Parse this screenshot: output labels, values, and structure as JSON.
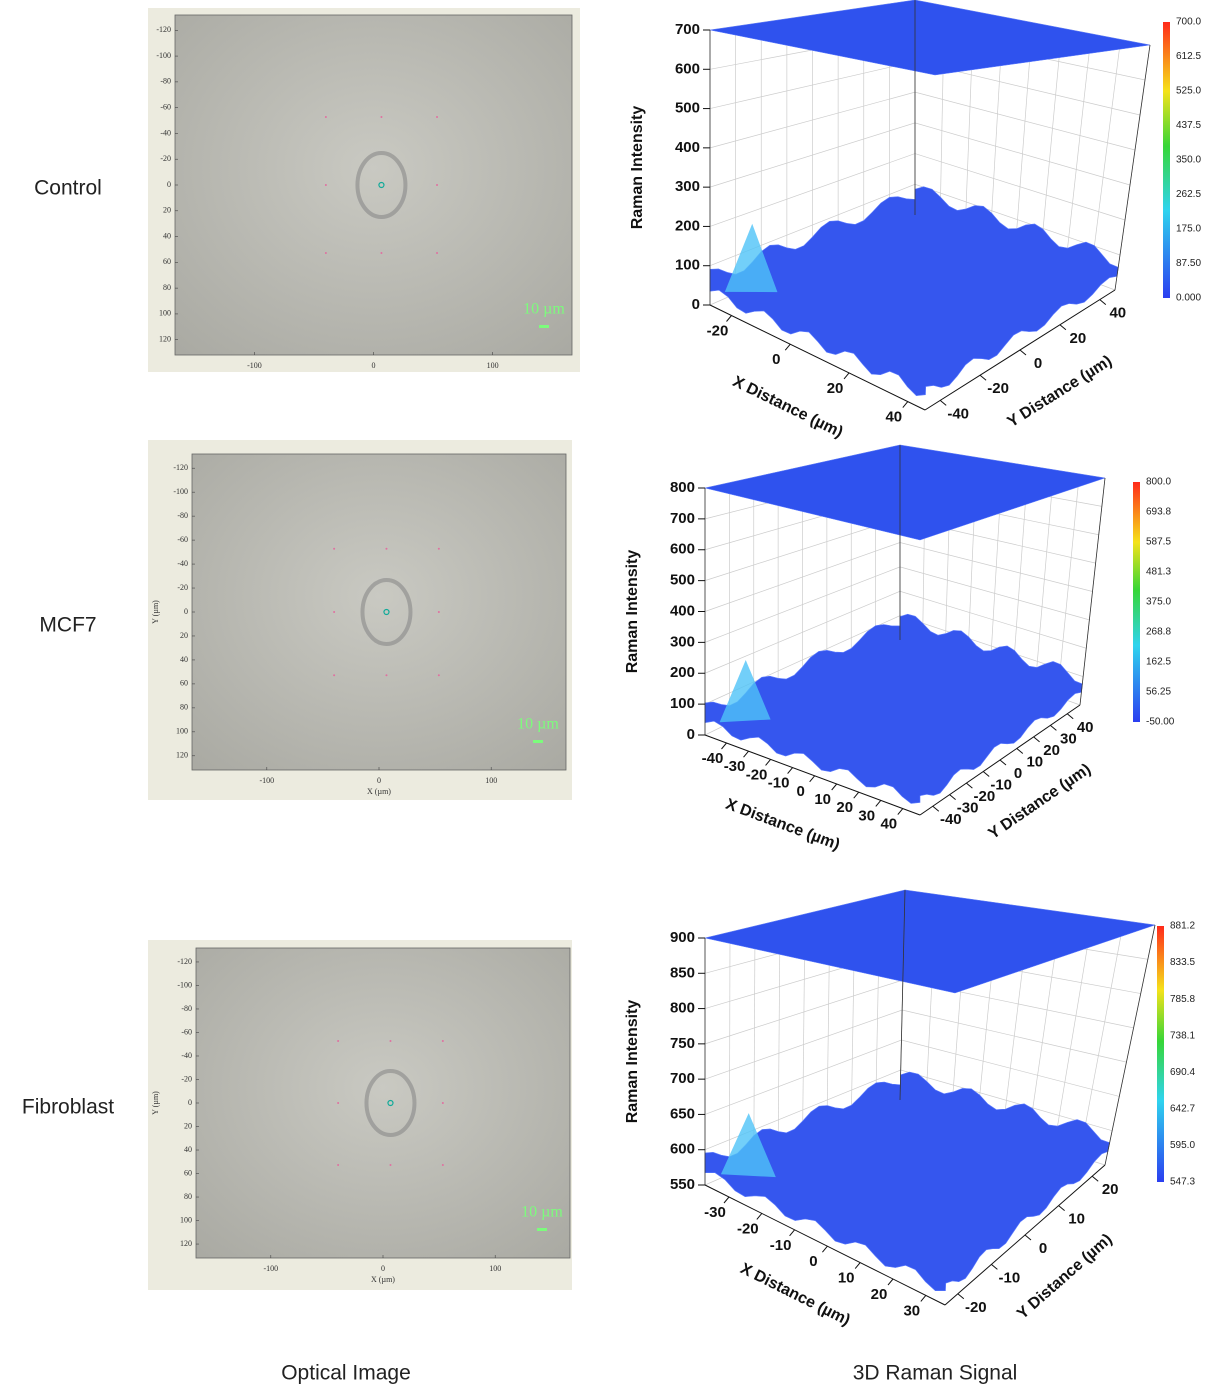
{
  "rows": [
    {
      "label": "Control",
      "optical": {
        "yticks": [
          -120,
          -100,
          -80,
          -60,
          -40,
          -20,
          0,
          20,
          40,
          60,
          80,
          100,
          120
        ],
        "xticks": [
          -100,
          0,
          100
        ],
        "scale_bar": "10 µm"
      },
      "raman": {
        "z_label": "Raman Intensity",
        "x_label": "X Distance (µm)",
        "y_label": "Y Distance (µm)",
        "zticks": [
          0,
          100,
          200,
          300,
          400,
          500,
          600,
          700
        ],
        "xticks": [
          -20,
          0,
          20,
          40
        ],
        "yticks": [
          -40,
          -20,
          0,
          20,
          40
        ],
        "colorbar": [
          "700.0",
          "612.5",
          "525.0",
          "437.5",
          "350.0",
          "262.5",
          "175.0",
          "87.50",
          "0.000"
        ]
      }
    },
    {
      "label": "MCF7",
      "optical": {
        "yticks": [
          -120,
          -100,
          -80,
          -60,
          -40,
          -20,
          0,
          20,
          40,
          60,
          80,
          100,
          120
        ],
        "xticks": [
          -100,
          0,
          100
        ],
        "scale_bar": "10 µm",
        "y_label": "Y (µm)",
        "x_label": "X (µm)"
      },
      "raman": {
        "z_label": "Raman Intensity",
        "x_label": "X Distance (µm)",
        "y_label": "Y Distance (µm)",
        "zticks": [
          0,
          100,
          200,
          300,
          400,
          500,
          600,
          700,
          800
        ],
        "xticks": [
          -40,
          -30,
          -20,
          -10,
          0,
          10,
          20,
          30,
          40
        ],
        "yticks": [
          -40,
          -30,
          -20,
          -10,
          0,
          10,
          20,
          30,
          40
        ],
        "colorbar": [
          "800.0",
          "693.8",
          "587.5",
          "481.3",
          "375.0",
          "268.8",
          "162.5",
          "56.25",
          "-50.00"
        ]
      }
    },
    {
      "label": "Fibroblast",
      "optical": {
        "yticks": [
          -120,
          -100,
          -80,
          -60,
          -40,
          -20,
          0,
          20,
          40,
          60,
          80,
          100,
          120
        ],
        "xticks": [
          -100,
          0,
          100
        ],
        "scale_bar": "10 µm",
        "y_label": "Y (µm)",
        "x_label": "X (µm)"
      },
      "raman": {
        "z_label": "Raman Intensity",
        "x_label": "X Distance (µm)",
        "y_label": "Y Distance (µm)",
        "zticks": [
          550,
          600,
          650,
          700,
          750,
          800,
          850,
          900
        ],
        "xticks": [
          -30,
          -20,
          -10,
          0,
          10,
          20,
          30
        ],
        "yticks": [
          -20,
          -10,
          0,
          10,
          20
        ],
        "colorbar": [
          "881.2",
          "833.5",
          "785.8",
          "738.1",
          "690.4",
          "642.7",
          "595.0",
          "547.3"
        ]
      }
    }
  ],
  "footer": {
    "left": "Optical Image",
    "right": "3D Raman Signal"
  }
}
